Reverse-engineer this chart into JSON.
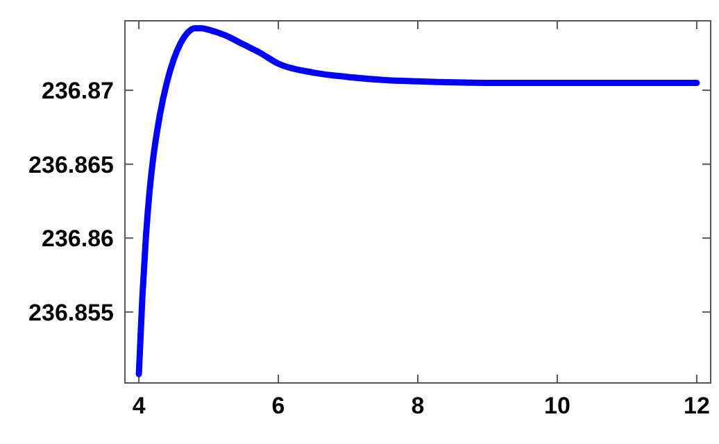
{
  "chart_data": {
    "type": "line",
    "x": [
      4.0,
      4.05,
      4.1,
      4.15,
      4.2,
      4.3,
      4.4,
      4.5,
      4.6,
      4.7,
      4.8,
      4.9,
      5.0,
      5.25,
      5.5,
      5.75,
      6.0,
      6.5,
      7.0,
      7.5,
      8.0,
      9.0,
      10.0,
      11.0,
      12.0
    ],
    "series": [
      {
        "color": "#0000ff",
        "values": [
          236.8508,
          236.856,
          236.86,
          236.863,
          236.8652,
          236.8683,
          236.8705,
          236.8721,
          236.8732,
          236.8739,
          236.8742,
          236.8742,
          236.8741,
          236.8737,
          236.8731,
          236.8725,
          236.8718,
          236.8712,
          236.8709,
          236.8707,
          236.8706,
          236.8705,
          236.8705,
          236.8705,
          236.8705
        ]
      }
    ],
    "xlim": [
      3.8,
      12.2
    ],
    "xticks": [
      4,
      6,
      8,
      10,
      12
    ],
    "ylim": [
      236.8502,
      236.8747
    ],
    "yticks": [
      236.855,
      236.86,
      236.865,
      236.87
    ],
    "marker": "none",
    "line_style": "solid"
  }
}
